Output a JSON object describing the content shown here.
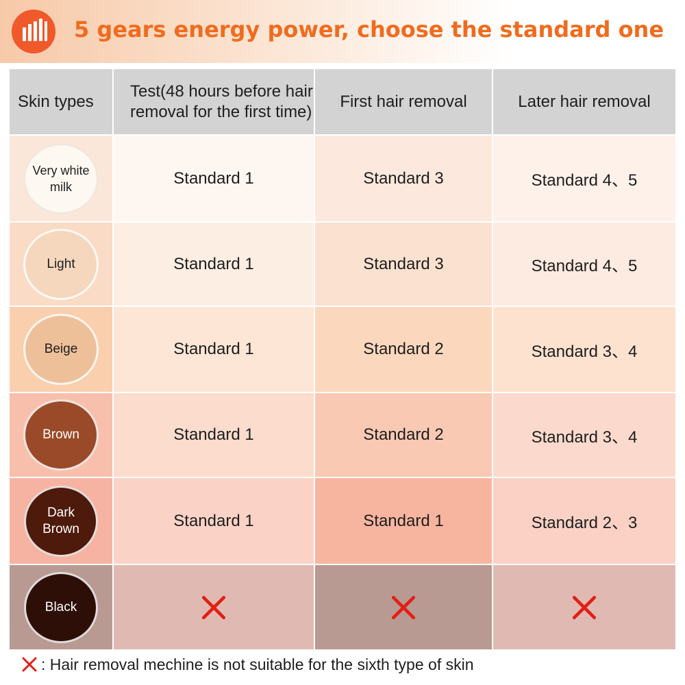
{
  "banner": {
    "title": "5 gears energy power, choose the standard one",
    "icon": "signal-bars-icon",
    "accent_color": "#ef6c1f",
    "icon_bg": "#f0592a"
  },
  "table": {
    "headers": {
      "skin": "Skin types",
      "test": "Test(48 hours before hair removal for the first time)",
      "first": "First hair removal",
      "later": "Later hair removal"
    },
    "rows": [
      {
        "skin": "Very white milk",
        "test": "Standard 1",
        "first": "Standard 3",
        "later": "Standard 4、5",
        "swatch_color": "#fdf8f2",
        "row_bg": "#fbe7da",
        "cell_bg": "#fef6f1",
        "first_bg": "#fce8dc",
        "later_bg": "#fef1ea"
      },
      {
        "skin": "Light",
        "test": "Standard 1",
        "first": "Standard 3",
        "later": "Standard 4、5",
        "swatch_color": "#f4d7bd",
        "row_bg": "#f9dbc6",
        "cell_bg": "#fdeee4",
        "first_bg": "#fbe1cf",
        "later_bg": "#fdeae0"
      },
      {
        "skin": "Beige",
        "test": "Standard 1",
        "first": "Standard 2",
        "later": "Standard 3、4",
        "swatch_color": "#eec09a",
        "row_bg": "#f9cfae",
        "cell_bg": "#fde6d6",
        "first_bg": "#fbd8bd",
        "later_bg": "#fde2d0"
      },
      {
        "skin": "Brown",
        "test": "Standard 1",
        "first": "Standard 2",
        "later": "Standard 3、4",
        "swatch_color": "#9b4a29",
        "row_bg": "#f8c0ac",
        "cell_bg": "#fbdccd",
        "first_bg": "#f9c9b3",
        "later_bg": "#fbdacd"
      },
      {
        "skin": "Dark Brown",
        "test": "Standard 1",
        "first": "Standard 1",
        "later": "Standard 2、3",
        "swatch_color": "#4e1a0b",
        "row_bg": "#f6b3a1",
        "cell_bg": "#fad3c6",
        "first_bg": "#f7b59f",
        "later_bg": "#fad1c4"
      },
      {
        "skin": "Black",
        "test": "not-suitable",
        "first": "not-suitable",
        "later": "not-suitable",
        "swatch_color": "#2e0f08",
        "row_bg": "#b89a92",
        "cell_bg": "#e0bab2",
        "first_bg": "#b89a92",
        "later_bg": "#e0bab2"
      }
    ]
  },
  "footer": {
    "text": ": Hair removal mechine is not suitable for the sixth type of skin",
    "icon": "red-x-icon"
  },
  "colors": {
    "x_mark": "#e21f16",
    "header_bg": "#d3d3d3"
  }
}
